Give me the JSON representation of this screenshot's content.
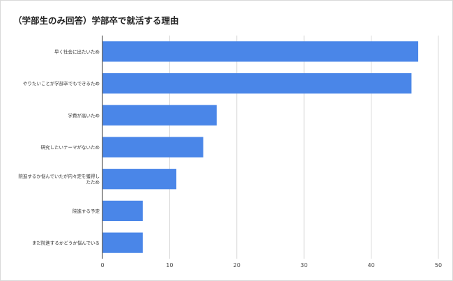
{
  "chart_data": {
    "type": "bar",
    "orientation": "horizontal",
    "title": "（学部生のみ回答）学部卒で就活する理由",
    "categories": [
      "早く社会に出たいため",
      [
        "やりたいことが学部卒でもできるため"
      ],
      "学費が高いため",
      "研究したいテーマがないため",
      "院進するか悩んでいたが内々定を獲得したため",
      "院進する予定",
      "まだ院進するかどうか悩んでいる"
    ],
    "category_lines": [
      [
        "早く社会に出たいため"
      ],
      [
        "やりたいことが学部卒でもできるため"
      ],
      [
        "学費が高いため"
      ],
      [
        "研究したいテーマがないため"
      ],
      [
        "院進するか悩んでいたが内々定を獲得し",
        "たため"
      ],
      [
        "院進する予定"
      ],
      [
        "まだ院進するかどうか悩んでいる"
      ]
    ],
    "values": [
      47,
      46,
      17,
      15,
      11,
      6,
      6
    ],
    "xlim": [
      0,
      50
    ],
    "xticks": [
      0,
      10,
      20,
      30,
      40,
      50
    ],
    "bar_color": "#4a86e8",
    "grid": true
  }
}
